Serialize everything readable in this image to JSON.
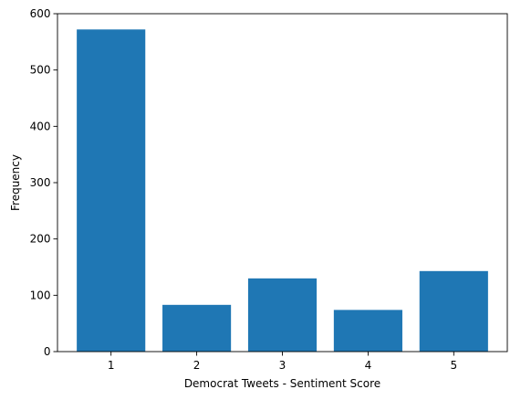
{
  "chart_data": {
    "type": "bar",
    "categories": [
      "1",
      "2",
      "3",
      "4",
      "5"
    ],
    "values": [
      572,
      83,
      130,
      74,
      143
    ],
    "xlabel": "Democrat Tweets - Sentiment Score",
    "ylabel": "Frequency",
    "ylim": [
      0,
      600
    ],
    "yticks": [
      "0",
      "100",
      "200",
      "300",
      "400",
      "500",
      "600"
    ],
    "grid": false,
    "colors": {
      "bar": "#1f77b4",
      "axis": "#000000",
      "background": "#ffffff"
    }
  }
}
